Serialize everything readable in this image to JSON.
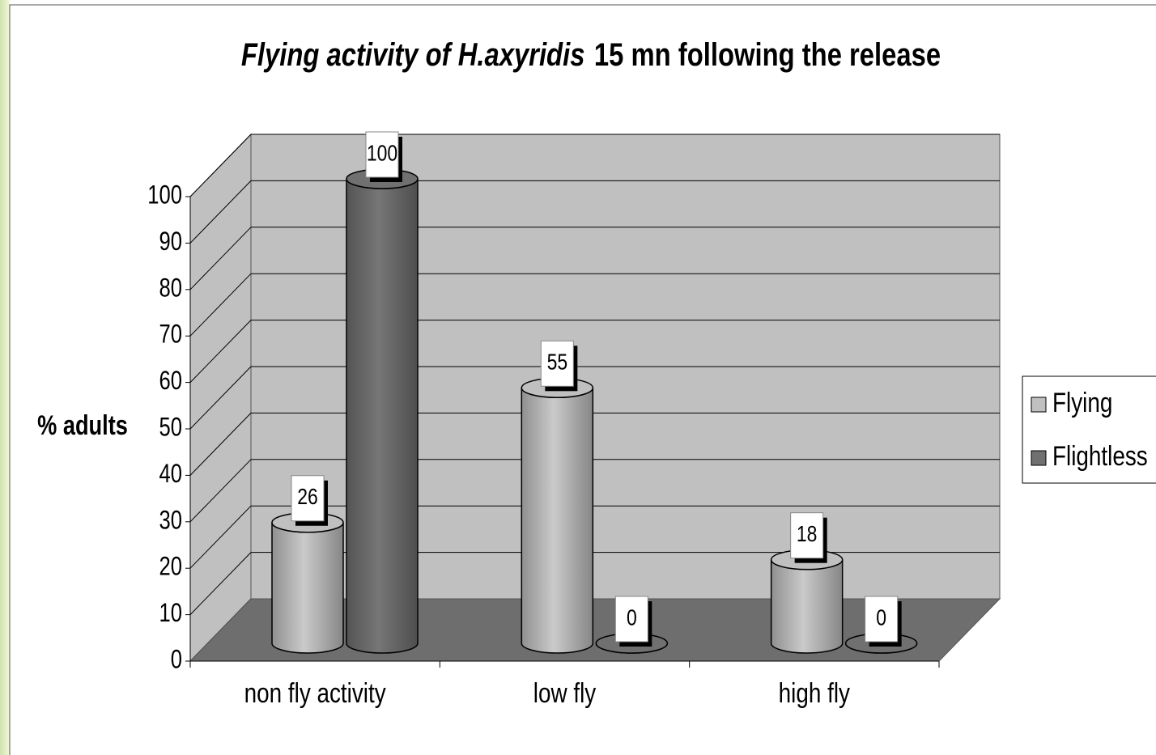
{
  "chart_data": {
    "type": "bar3d",
    "title": [
      "Flying activity of H.axyridis",
      "15 mn following the release"
    ],
    "y_label": "% adults",
    "categories": [
      "non fly activity",
      "low fly",
      "high fly"
    ],
    "series": [
      {
        "name": "Flying",
        "color": "#c0c0c0",
        "values": [
          26,
          55,
          18
        ]
      },
      {
        "name": "Flightless",
        "color": "#707070",
        "values": [
          100,
          0,
          0
        ]
      }
    ],
    "ylim": [
      0,
      100
    ],
    "yticks": [
      0,
      10,
      20,
      30,
      40,
      50,
      60,
      70,
      80,
      90,
      100
    ],
    "grid": true,
    "legend": "right"
  }
}
